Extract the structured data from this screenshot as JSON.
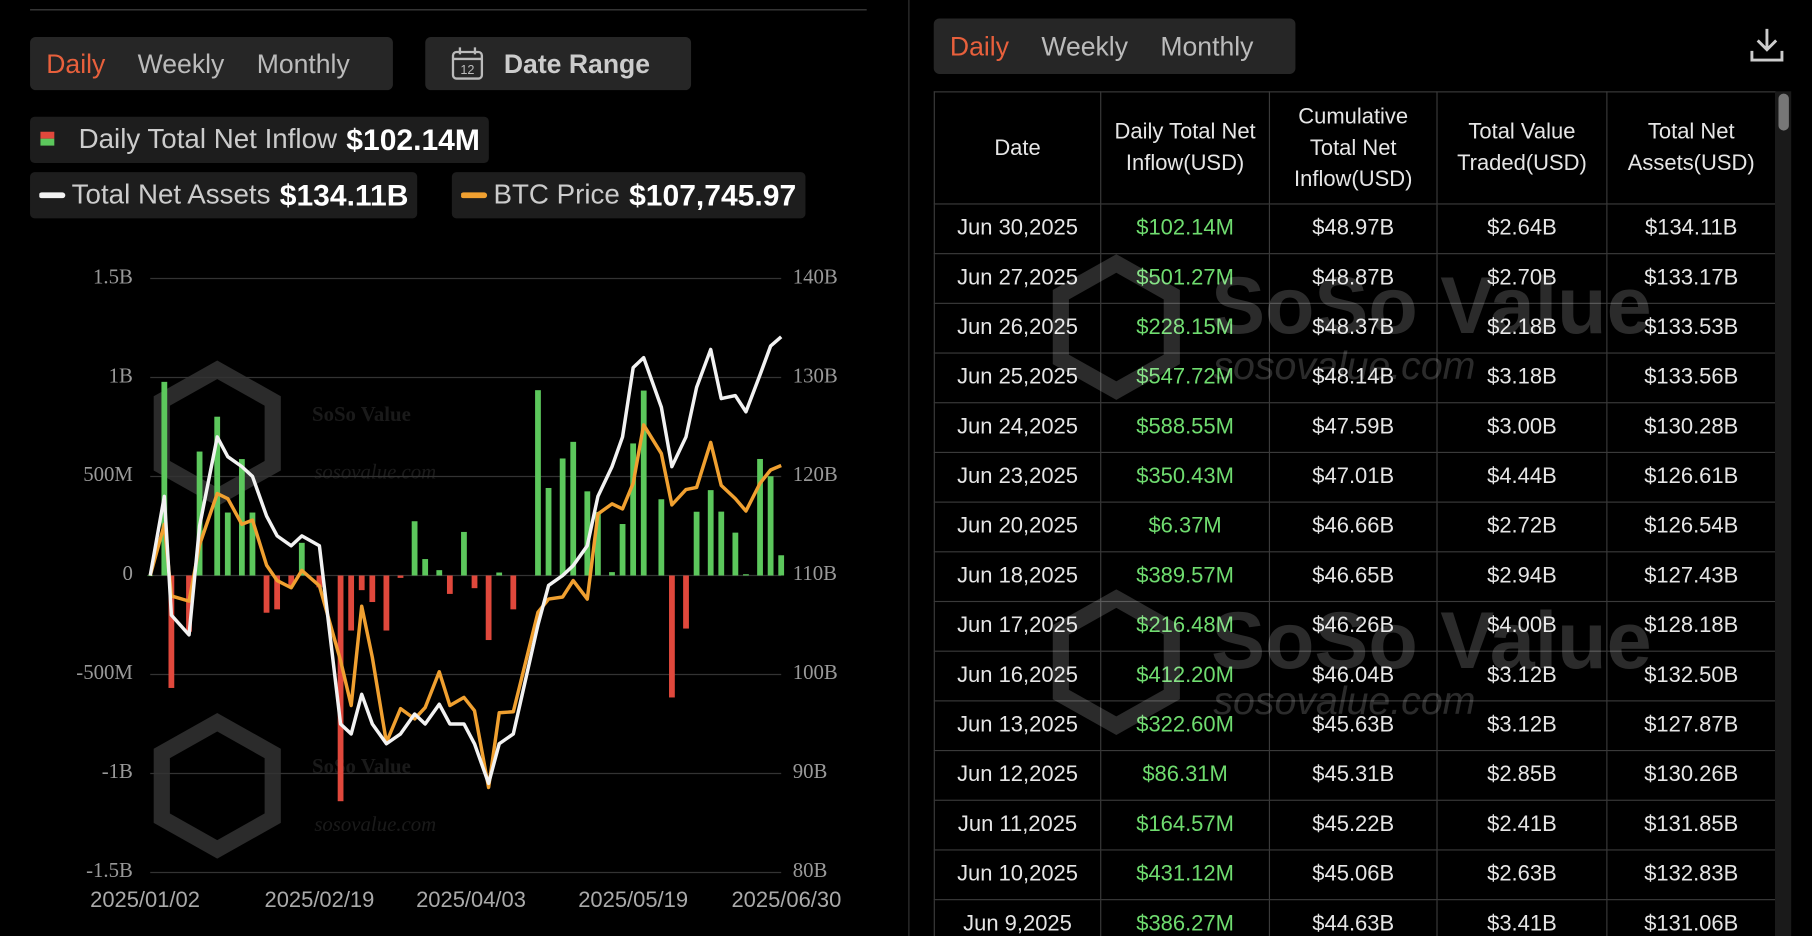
{
  "chart_data": {
    "type": "bar-line",
    "x": [
      "2025/01/02",
      "2025/01/06",
      "2025/01/08",
      "2025/01/13",
      "2025/01/16",
      "2025/01/21",
      "2025/01/24",
      "2025/01/28",
      "2025/01/31",
      "2025/02/04",
      "2025/02/07",
      "2025/02/11",
      "2025/02/14",
      "2025/02/19",
      "2025/02/25",
      "2025/02/28",
      "2025/03/03",
      "2025/03/06",
      "2025/03/10",
      "2025/03/14",
      "2025/03/18",
      "2025/03/21",
      "2025/03/25",
      "2025/03/28",
      "2025/04/01",
      "2025/04/04",
      "2025/04/08",
      "2025/04/11",
      "2025/04/15",
      "2025/04/22",
      "2025/04/25",
      "2025/04/29",
      "2025/05/02",
      "2025/05/06",
      "2025/05/09",
      "2025/05/13",
      "2025/05/16",
      "2025/05/19",
      "2025/05/22",
      "2025/05/27",
      "2025/05/30",
      "2025/06/03",
      "2025/06/06",
      "2025/06/10",
      "2025/06/13",
      "2025/06/17",
      "2025/06/20",
      "2025/06/24",
      "2025/06/27",
      "2025/06/30"
    ],
    "xlim": [
      "2025/01/02",
      "2025/06/30"
    ],
    "xticks": [
      "2025/01/02",
      "2025/02/19",
      "2025/04/03",
      "2025/05/19",
      "2025/06/30"
    ],
    "ylim": [
      -1500000000,
      1500000000
    ],
    "yticks": [
      {
        "value": -1500000000,
        "label": "-1.5B"
      },
      {
        "value": -1000000000,
        "label": "-1B"
      },
      {
        "value": -500000000,
        "label": "-500M"
      },
      0,
      {
        "value": 500000000,
        "label": "500M"
      },
      {
        "value": 1000000000,
        "label": "1B"
      },
      {
        "value": 1500000000,
        "label": "1.5B"
      }
    ],
    "y2lim": [
      80000000000,
      140000000000
    ],
    "y2ticks": [
      {
        "value": 80000000000,
        "label": "80B"
      },
      {
        "value": 90000000000,
        "label": "90B"
      },
      {
        "value": 100000000000,
        "label": "100B"
      },
      {
        "value": 110000000000,
        "label": "110B"
      },
      {
        "value": 120000000000,
        "label": "120B"
      },
      {
        "value": 130000000000,
        "label": "130B"
      },
      {
        "value": 140000000000,
        "label": "140B"
      }
    ],
    "y3lim": [
      68000,
      126000
    ],
    "grid": true,
    "series": [
      {
        "name": "Daily Total Net Inflow",
        "type": "bar",
        "color": "#5cc75c",
        "negative_color": "#e0483c",
        "latest_label": "$102.14M",
        "values": [
          0,
          978000000,
          -568000000,
          -284000000,
          626000000,
          802000000,
          318000000,
          588000000,
          318000000,
          -188000000,
          -171000000,
          -56000000,
          165000000,
          -60000000,
          -1140000000,
          -278000000,
          -74000000,
          -134000000,
          -278000000,
          -12000000,
          274000000,
          83000000,
          27000000,
          -93000000,
          220000000,
          -64000000,
          -326000000,
          15000000,
          -171000000,
          936000000,
          442000000,
          591000000,
          675000000,
          425000000,
          321000000,
          17000000,
          260000000,
          667000000,
          934000000,
          385000000,
          -616000000,
          -268000000,
          322000000,
          431120000,
          322600000,
          216480000,
          6370000,
          588550000,
          501270000,
          102140000
        ]
      },
      {
        "name": "Total Net Assets",
        "type": "line",
        "axis": "y2",
        "color": "#f2f2f2",
        "latest_label": "$134.11B",
        "values": [
          110000000000,
          118000000000,
          106000000000,
          104000000000,
          115000000000,
          124000000000,
          122000000000,
          121000000000,
          120000000000,
          116000000000,
          114000000000,
          113000000000,
          114000000000,
          113000000000,
          95000000000,
          94000000000,
          98000000000,
          95000000000,
          93000000000,
          94000000000,
          96000000000,
          95000000000,
          97000000000,
          95000000000,
          95000000000,
          93000000000,
          89000000000,
          93000000000,
          94000000000,
          105000000000,
          109000000000,
          110000000000,
          111000000000,
          113000000000,
          118000000000,
          121000000000,
          124000000000,
          131000000000,
          132000000000,
          127000000000,
          121000000000,
          124000000000,
          129000000000,
          132830000000,
          127870000000,
          128180000000,
          126540000000,
          130280000000,
          133170000000,
          134110000000
        ]
      },
      {
        "name": "BTC Price",
        "type": "line",
        "axis": "y3",
        "color": "#f0a030",
        "latest_label": "$107,745.97",
        "values": [
          97000,
          102000,
          95000,
          94500,
          100000,
          105000,
          104500,
          102000,
          102400,
          98000,
          96500,
          95800,
          97500,
          96000,
          88700,
          84300,
          94000,
          89000,
          80700,
          84000,
          83000,
          84100,
          87600,
          84300,
          85100,
          83800,
          76300,
          83600,
          83700,
          93400,
          94700,
          94900,
          96500,
          94700,
          103000,
          104000,
          103500,
          106000,
          111700,
          108900,
          103900,
          105400,
          105600,
          110000,
          105800,
          104500,
          103300,
          106000,
          107300,
          107745.97
        ]
      }
    ],
    "watermark": {
      "brand": "SoSo Value",
      "site": "sosovalue.com"
    }
  },
  "left_controls": {
    "tabs": [
      "Daily",
      "Weekly",
      "Monthly"
    ],
    "date_range": "Date Range",
    "calendar_day": "12"
  },
  "table_panel": {
    "tabs": [
      "Daily",
      "Weekly",
      "Monthly"
    ],
    "headers": [
      "Date",
      "Daily Total Net Inflow(USD)",
      "Cumulative Total Net Inflow(USD)",
      "Total Value Traded(USD)",
      "Total Net Assets(USD)"
    ],
    "rows": [
      [
        "Jun 30,2025",
        "$102.14M",
        "$48.97B",
        "$2.64B",
        "$134.11B"
      ],
      [
        "Jun 27,2025",
        "$501.27M",
        "$48.87B",
        "$2.70B",
        "$133.17B"
      ],
      [
        "Jun 26,2025",
        "$228.15M",
        "$48.37B",
        "$2.18B",
        "$133.53B"
      ],
      [
        "Jun 25,2025",
        "$547.72M",
        "$48.14B",
        "$3.18B",
        "$133.56B"
      ],
      [
        "Jun 24,2025",
        "$588.55M",
        "$47.59B",
        "$3.00B",
        "$130.28B"
      ],
      [
        "Jun 23,2025",
        "$350.43M",
        "$47.01B",
        "$4.44B",
        "$126.61B"
      ],
      [
        "Jun 20,2025",
        "$6.37M",
        "$46.66B",
        "$2.72B",
        "$126.54B"
      ],
      [
        "Jun 18,2025",
        "$389.57M",
        "$46.65B",
        "$2.94B",
        "$127.43B"
      ],
      [
        "Jun 17,2025",
        "$216.48M",
        "$46.26B",
        "$4.00B",
        "$128.18B"
      ],
      [
        "Jun 16,2025",
        "$412.20M",
        "$46.04B",
        "$3.12B",
        "$132.50B"
      ],
      [
        "Jun 13,2025",
        "$322.60M",
        "$45.63B",
        "$3.12B",
        "$127.87B"
      ],
      [
        "Jun 12,2025",
        "$86.31M",
        "$45.31B",
        "$2.85B",
        "$130.26B"
      ],
      [
        "Jun 11,2025",
        "$164.57M",
        "$45.22B",
        "$2.41B",
        "$131.85B"
      ],
      [
        "Jun 10,2025",
        "$431.12M",
        "$45.06B",
        "$2.63B",
        "$132.83B"
      ],
      [
        "Jun 9,2025",
        "$386.27M",
        "$44.63B",
        "$3.41B",
        "$131.06B"
      ]
    ],
    "watermark": {
      "brand": "SoSo Value",
      "site": "sosovalue.com"
    }
  }
}
